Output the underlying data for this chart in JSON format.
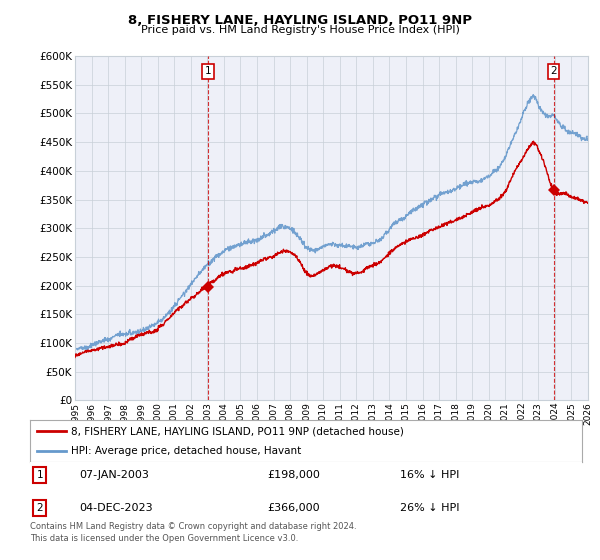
{
  "title": "8, FISHERY LANE, HAYLING ISLAND, PO11 9NP",
  "subtitle": "Price paid vs. HM Land Registry's House Price Index (HPI)",
  "legend_line1": "8, FISHERY LANE, HAYLING ISLAND, PO11 9NP (detached house)",
  "legend_line2": "HPI: Average price, detached house, Havant",
  "annotation1_date": "07-JAN-2003",
  "annotation1_price": "£198,000",
  "annotation1_hpi": "16% ↓ HPI",
  "annotation2_date": "04-DEC-2023",
  "annotation2_price": "£366,000",
  "annotation2_hpi": "26% ↓ HPI",
  "footer": "Contains HM Land Registry data © Crown copyright and database right 2024.\nThis data is licensed under the Open Government Licence v3.0.",
  "ylim": [
    0,
    600000
  ],
  "yticks": [
    0,
    50000,
    100000,
    150000,
    200000,
    250000,
    300000,
    350000,
    400000,
    450000,
    500000,
    550000,
    600000
  ],
  "red_color": "#cc0000",
  "blue_color": "#6699cc",
  "grid_color": "#c8d0d8",
  "bg_color": "#ffffff",
  "plot_bg_color": "#eef0f8",
  "sale1_x": 2003.04,
  "sale1_y": 198000,
  "sale2_x": 2023.92,
  "sale2_y": 366000,
  "xmin": 1995,
  "xmax": 2026
}
